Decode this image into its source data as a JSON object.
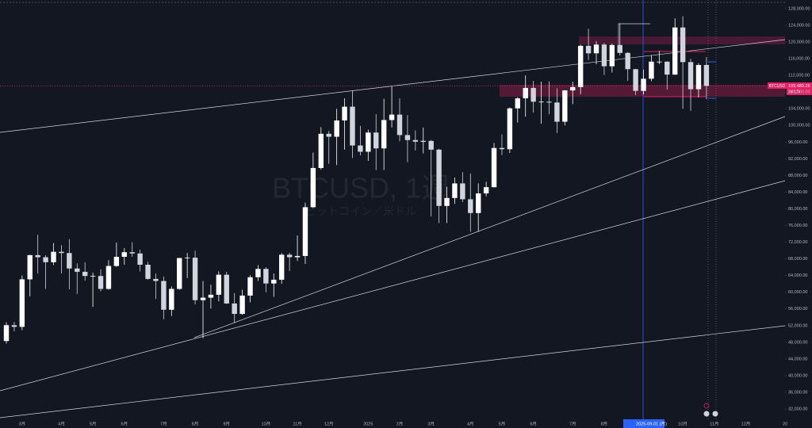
{
  "chart_data": {
    "type": "candlestick",
    "watermark": "BTCUSD, 1週",
    "watermark_sub": "ビットコイン／米ドル",
    "symbol": "BTCUSD",
    "countdown": "2d 17h",
    "last_price": {
      "value": 109489.28,
      "label": "109,489.28"
    },
    "up_color": "#ffffff",
    "down_color": "#d1d4dc",
    "categories": [
      null,
      null,
      "3月",
      null,
      null,
      null,
      null,
      "4月",
      null,
      null,
      null,
      "5月",
      null,
      null,
      null,
      "6月",
      null,
      null,
      null,
      null,
      "7月",
      null,
      null,
      null,
      "8月",
      null,
      null,
      null,
      "9月",
      null,
      null,
      null,
      null,
      "10月",
      null,
      null,
      null,
      "11月",
      null,
      null,
      null,
      "12月",
      null,
      null,
      null,
      null,
      "2025",
      null,
      null,
      null,
      "2月",
      null,
      null,
      null,
      "3月",
      null,
      null,
      null,
      null,
      "4月",
      null,
      null,
      null,
      "5月",
      null,
      null,
      null,
      "6月",
      null,
      null,
      null,
      null,
      "7月",
      null,
      null,
      null,
      "8月",
      null,
      null,
      null,
      null,
      null,
      "2025-09-01 (月)",
      null,
      null,
      null,
      "10月",
      null,
      null,
      null,
      "11月",
      null,
      null,
      null,
      "12月",
      null,
      null,
      null,
      null,
      "20"
    ],
    "open": [
      48300,
      52100,
      51700,
      63100,
      68900,
      68400,
      67200,
      69700,
      69400,
      65700,
      64900,
      63900,
      63900,
      60800,
      66300,
      68500,
      69600,
      69300,
      66600,
      63200,
      62700,
      55800,
      60800,
      68200,
      68300,
      58100,
      58700,
      59400,
      64200,
      57300,
      54800,
      59200,
      63600,
      65600,
      62100,
      63000,
      69000,
      68400,
      68700,
      80400,
      89800,
      98000,
      97300,
      101200,
      104500,
      95200,
      93700,
      98300,
      94500,
      101300,
      102600,
      97700,
      96500,
      96100,
      96300,
      94200,
      80700,
      82600,
      86100,
      82300,
      79000,
      83700,
      85200,
      94600,
      94300,
      104100,
      106500,
      109000,
      105700,
      105700,
      105500,
      100900,
      108400,
      109200,
      119100,
      117300,
      119400,
      114200,
      119300,
      117400,
      113500,
      108300,
      111200,
      115300,
      115300,
      112200,
      123500,
      115200,
      108700,
      114500,
      null,
      null,
      null,
      null,
      null,
      null,
      null,
      null,
      null,
      null
    ],
    "high": [
      52800,
      52900,
      64000,
      69000,
      73800,
      68900,
      71800,
      71300,
      72700,
      66900,
      67200,
      64700,
      65500,
      67700,
      71900,
      70600,
      72000,
      70200,
      67300,
      64500,
      63800,
      61400,
      68300,
      69400,
      70000,
      62700,
      61800,
      65000,
      64900,
      59800,
      60600,
      64100,
      66500,
      66000,
      64500,
      69400,
      69500,
      73600,
      81500,
      93500,
      99600,
      98700,
      104000,
      106500,
      108400,
      99900,
      99000,
      102700,
      106400,
      109400,
      106500,
      102500,
      98800,
      99500,
      96500,
      94400,
      85300,
      87500,
      88800,
      88500,
      86100,
      86500,
      95800,
      97900,
      104300,
      106800,
      112000,
      110700,
      110500,
      110600,
      108900,
      108500,
      110500,
      119400,
      123200,
      120200,
      119800,
      119600,
      124500,
      117600,
      113600,
      113400,
      116800,
      117900,
      115400,
      125700,
      126200,
      116000,
      114900,
      116400,
      null,
      null,
      null,
      null,
      null,
      null,
      null,
      null,
      null,
      null
    ],
    "low": [
      47700,
      50600,
      50900,
      59000,
      64500,
      60800,
      66500,
      64500,
      60700,
      59600,
      62800,
      56500,
      60200,
      60600,
      66100,
      66600,
      68500,
      65000,
      63000,
      58400,
      53500,
      54300,
      60600,
      63400,
      57100,
      49000,
      56100,
      57800,
      57200,
      52600,
      54600,
      57600,
      62700,
      60000,
      58900,
      62000,
      65100,
      67500,
      66800,
      80200,
      89400,
      90800,
      90500,
      94200,
      92200,
      92800,
      91500,
      89300,
      89300,
      99500,
      96200,
      91200,
      94000,
      93300,
      78200,
      76600,
      76600,
      81200,
      81600,
      74500,
      74500,
      83000,
      85100,
      92900,
      93400,
      100700,
      102100,
      103100,
      100400,
      102700,
      98200,
      100000,
      105100,
      107500,
      115700,
      114700,
      112100,
      112700,
      116800,
      110700,
      107300,
      107400,
      110600,
      114700,
      108600,
      112100,
      104000,
      103500,
      106700,
      106300,
      null,
      null,
      null,
      null,
      null,
      null,
      null,
      null,
      null,
      null
    ],
    "close": [
      52100,
      51700,
      63100,
      68900,
      68400,
      67200,
      69700,
      69400,
      65700,
      64900,
      63900,
      63900,
      60800,
      66300,
      68500,
      69600,
      69300,
      66600,
      63200,
      62700,
      55800,
      60800,
      68200,
      68300,
      58100,
      58700,
      59400,
      64200,
      57300,
      54800,
      59200,
      63600,
      65600,
      62100,
      63000,
      69000,
      68400,
      68700,
      80400,
      89800,
      98000,
      97300,
      101200,
      104500,
      95200,
      93700,
      98300,
      94500,
      101300,
      102600,
      97700,
      96500,
      96100,
      96300,
      94200,
      80700,
      82600,
      86100,
      82300,
      79000,
      83700,
      85200,
      94600,
      94300,
      104100,
      106500,
      109000,
      105700,
      105700,
      105500,
      100900,
      108400,
      109200,
      119100,
      117300,
      119400,
      114200,
      119300,
      117400,
      113500,
      108300,
      111200,
      115300,
      115300,
      112200,
      123500,
      115200,
      108700,
      114500,
      109489.28,
      null,
      null,
      null,
      null,
      null,
      null,
      null,
      null,
      null,
      null
    ],
    "ylim": [
      27440,
      130090
    ],
    "yticks": [
      {
        "value": 32000,
        "label": "32,000.00"
      },
      {
        "value": 36000,
        "label": "36,000.00"
      },
      {
        "value": 40000,
        "label": "40,000.00"
      },
      {
        "value": 44000,
        "label": "44,000.00"
      },
      {
        "value": 48000,
        "label": "48,000.00"
      },
      {
        "value": 52000,
        "label": "52,000.00"
      },
      {
        "value": 56000,
        "label": "56,000.00"
      },
      {
        "value": 60000,
        "label": "60,000.00"
      },
      {
        "value": 64000,
        "label": "64,000.00"
      },
      {
        "value": 68000,
        "label": "68,000.00"
      },
      {
        "value": 72000,
        "label": "72,000.00"
      },
      {
        "value": 76000,
        "label": "76,000.00"
      },
      {
        "value": 80000,
        "label": "80,000.00"
      },
      {
        "value": 84000,
        "label": "84,000.00"
      },
      {
        "value": 88000,
        "label": "88,000.00"
      },
      {
        "value": 92000,
        "label": "92,000.00"
      },
      {
        "value": 96000,
        "label": "96,000.00"
      },
      {
        "value": 100000,
        "label": "100,000.00"
      },
      {
        "value": 104000,
        "label": "104,000.00"
      },
      {
        "value": 108000,
        "label": "108,000.00"
      },
      {
        "value": 112000,
        "label": "112,000.00"
      },
      {
        "value": 116000,
        "label": "116,000.00"
      },
      {
        "value": 120000,
        "label": "120,000.00"
      },
      {
        "value": 124000,
        "label": "124,000.00"
      },
      {
        "value": 128000,
        "label": "128,000.00"
      }
    ],
    "grid": false
  }
}
